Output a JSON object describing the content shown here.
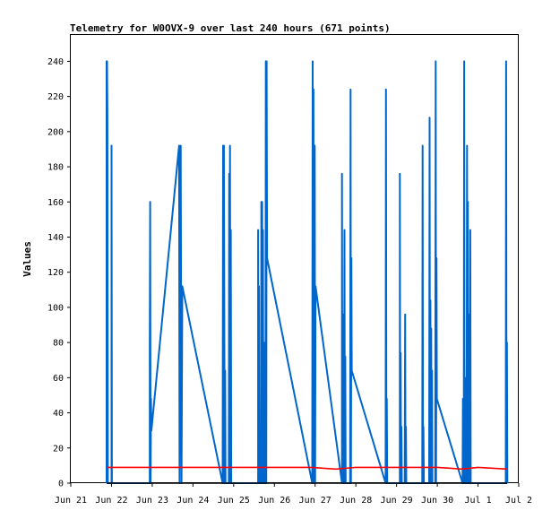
{
  "chart_data": {
    "type": "line",
    "title": "Telemetry for W0OVX-9 over last 240 hours (671 points)",
    "ylabel": "Values",
    "xlabel": "",
    "x_unit": "days since Jun 21 00:00",
    "xlim": [
      0,
      11
    ],
    "ylim": [
      0,
      255
    ],
    "x_ticks": [
      {
        "x": 0,
        "label": "Jun 21"
      },
      {
        "x": 1,
        "label": "Jun 22"
      },
      {
        "x": 2,
        "label": "Jun 23"
      },
      {
        "x": 3,
        "label": "Jun 24"
      },
      {
        "x": 4,
        "label": "Jun 25"
      },
      {
        "x": 5,
        "label": "Jun 26"
      },
      {
        "x": 6,
        "label": "Jun 27"
      },
      {
        "x": 7,
        "label": "Jun 28"
      },
      {
        "x": 8,
        "label": "Jun 29"
      },
      {
        "x": 9,
        "label": "Jun 30"
      },
      {
        "x": 10,
        "label": "Jul 1"
      },
      {
        "x": 11,
        "label": "Jul 2"
      }
    ],
    "y_ticks": [
      0,
      20,
      40,
      60,
      80,
      100,
      120,
      140,
      160,
      180,
      200,
      220,
      240
    ],
    "grid": false,
    "series": [
      {
        "name": "",
        "color": "#0066cc",
        "points": [
          [
            0.88,
            0
          ],
          [
            0.88,
            240
          ],
          [
            0.89,
            240
          ],
          [
            0.9,
            208
          ],
          [
            0.91,
            0
          ],
          [
            1.0,
            0
          ],
          [
            1.0,
            192
          ],
          [
            1.01,
            0
          ],
          [
            1.94,
            0
          ],
          [
            1.94,
            80
          ],
          [
            1.95,
            160
          ],
          [
            1.96,
            0
          ],
          [
            1.97,
            48
          ],
          [
            1.98,
            30
          ],
          [
            2.66,
            192
          ],
          [
            2.67,
            0
          ],
          [
            2.7,
            192
          ],
          [
            2.72,
            0
          ],
          [
            2.74,
            112
          ],
          [
            3.73,
            0
          ],
          [
            3.74,
            192
          ],
          [
            3.75,
            0
          ],
          [
            3.76,
            192
          ],
          [
            3.77,
            90
          ],
          [
            3.78,
            0
          ],
          [
            3.79,
            64
          ],
          [
            3.8,
            0
          ],
          [
            3.88,
            0
          ],
          [
            3.89,
            176
          ],
          [
            3.9,
            0
          ],
          [
            3.91,
            192
          ],
          [
            3.92,
            0
          ],
          [
            3.93,
            144
          ],
          [
            3.94,
            0
          ],
          [
            4.6,
            0
          ],
          [
            4.6,
            144
          ],
          [
            4.61,
            0
          ],
          [
            4.62,
            112
          ],
          [
            4.63,
            0
          ],
          [
            4.67,
            0
          ],
          [
            4.68,
            160
          ],
          [
            4.69,
            0
          ],
          [
            4.7,
            160
          ],
          [
            4.71,
            0
          ],
          [
            4.72,
            144
          ],
          [
            4.73,
            0
          ],
          [
            4.74,
            80
          ],
          [
            4.75,
            0
          ],
          [
            4.78,
            0
          ],
          [
            4.79,
            240
          ],
          [
            4.8,
            0
          ],
          [
            4.81,
            240
          ],
          [
            4.82,
            128
          ],
          [
            5.93,
            0
          ],
          [
            5.94,
            240
          ],
          [
            5.95,
            0
          ],
          [
            5.96,
            224
          ],
          [
            5.97,
            0
          ],
          [
            5.98,
            0
          ],
          [
            5.99,
            192
          ],
          [
            6.0,
            0
          ],
          [
            6.01,
            112
          ],
          [
            6.66,
            0
          ],
          [
            6.66,
            176
          ],
          [
            6.67,
            0
          ],
          [
            6.68,
            88
          ],
          [
            6.69,
            0
          ],
          [
            6.7,
            96
          ],
          [
            6.71,
            0
          ],
          [
            6.72,
            144
          ],
          [
            6.73,
            0
          ],
          [
            6.74,
            72
          ],
          [
            6.75,
            0
          ],
          [
            6.86,
            0
          ],
          [
            6.87,
            224
          ],
          [
            6.88,
            0
          ],
          [
            6.89,
            128
          ],
          [
            6.9,
            64
          ],
          [
            7.73,
            0
          ],
          [
            7.74,
            224
          ],
          [
            7.75,
            0
          ],
          [
            7.76,
            48
          ],
          [
            7.77,
            0
          ],
          [
            8.08,
            0
          ],
          [
            8.08,
            176
          ],
          [
            8.09,
            0
          ],
          [
            8.1,
            74
          ],
          [
            8.11,
            0
          ],
          [
            8.12,
            32
          ],
          [
            8.13,
            0
          ],
          [
            8.2,
            0
          ],
          [
            8.21,
            96
          ],
          [
            8.22,
            0
          ],
          [
            8.23,
            32
          ],
          [
            8.24,
            0
          ],
          [
            8.63,
            0
          ],
          [
            8.64,
            192
          ],
          [
            8.65,
            0
          ],
          [
            8.66,
            32
          ],
          [
            8.67,
            0
          ],
          [
            8.8,
            0
          ],
          [
            8.81,
            208
          ],
          [
            8.82,
            0
          ],
          [
            8.83,
            104
          ],
          [
            8.84,
            0
          ],
          [
            8.85,
            88
          ],
          [
            8.86,
            0
          ],
          [
            8.87,
            64
          ],
          [
            8.88,
            0
          ],
          [
            8.95,
            0
          ],
          [
            8.96,
            240
          ],
          [
            8.97,
            0
          ],
          [
            8.98,
            128
          ],
          [
            8.99,
            48
          ],
          [
            9.62,
            0
          ],
          [
            9.63,
            48
          ],
          [
            9.64,
            0
          ],
          [
            9.65,
            0
          ],
          [
            9.66,
            240
          ],
          [
            9.67,
            0
          ],
          [
            9.68,
            60
          ],
          [
            9.69,
            0
          ],
          [
            9.72,
            0
          ],
          [
            9.73,
            192
          ],
          [
            9.74,
            0
          ],
          [
            9.75,
            160
          ],
          [
            9.76,
            0
          ],
          [
            9.77,
            96
          ],
          [
            9.78,
            0
          ],
          [
            9.79,
            96
          ],
          [
            9.8,
            0
          ],
          [
            9.81,
            144
          ],
          [
            9.82,
            0
          ],
          [
            10.68,
            0
          ],
          [
            10.69,
            240
          ],
          [
            10.7,
            0
          ],
          [
            10.71,
            80
          ],
          [
            10.72,
            0
          ]
        ]
      },
      {
        "name": "",
        "color": "#ff0000",
        "points": [
          [
            0.88,
            9
          ],
          [
            2.0,
            9
          ],
          [
            3.0,
            9
          ],
          [
            4.0,
            9
          ],
          [
            5.0,
            9
          ],
          [
            5.9,
            9
          ],
          [
            6.5,
            8
          ],
          [
            7.0,
            9
          ],
          [
            8.0,
            9
          ],
          [
            9.0,
            9
          ],
          [
            9.6,
            8
          ],
          [
            10.0,
            9
          ],
          [
            10.72,
            8
          ]
        ]
      },
      {
        "name": "",
        "color": "#000000",
        "points": [
          [
            0.88,
            0
          ],
          [
            10.72,
            0
          ]
        ]
      }
    ]
  }
}
